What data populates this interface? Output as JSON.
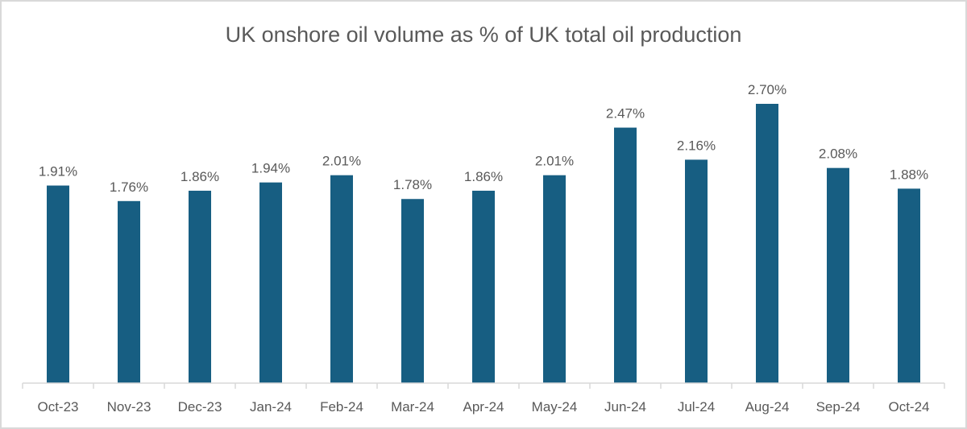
{
  "chart_data": {
    "type": "bar",
    "title": "UK onshore oil volume as % of UK total oil production",
    "xlabel": "",
    "ylabel": "",
    "ylim": [
      0,
      2.7
    ],
    "grid": false,
    "legend": "none",
    "bar_color": "#175e82",
    "categories": [
      "Oct-23",
      "Nov-23",
      "Dec-23",
      "Jan-24",
      "Feb-24",
      "Mar-24",
      "Apr-24",
      "May-24",
      "Jun-24",
      "Jul-24",
      "Aug-24",
      "Sep-24",
      "Oct-24"
    ],
    "values": [
      1.91,
      1.76,
      1.86,
      1.94,
      2.01,
      1.78,
      1.86,
      2.01,
      2.47,
      2.16,
      2.7,
      2.08,
      1.88
    ],
    "data_labels": [
      "1.91%",
      "1.76%",
      "1.86%",
      "1.94%",
      "2.01%",
      "1.78%",
      "1.86%",
      "2.01%",
      "2.47%",
      "2.16%",
      "2.70%",
      "2.08%",
      "1.88%"
    ]
  }
}
